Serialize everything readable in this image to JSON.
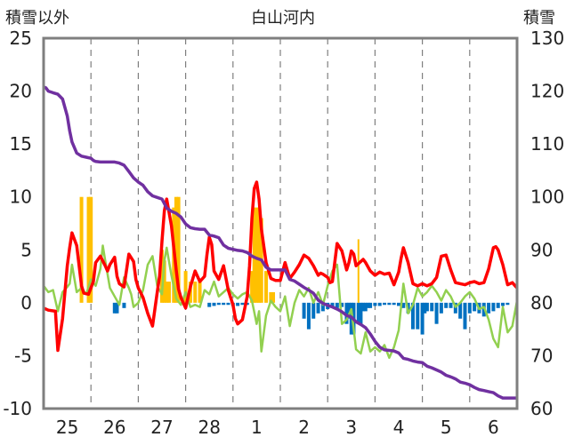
{
  "chart_data": {
    "type": "line",
    "title": "白山河内",
    "ylabel_left": "積雪以外",
    "ylabel_right": "積雪",
    "ylim_left": [
      -10,
      25
    ],
    "yticks_left": [
      "25",
      "20",
      "15",
      "10",
      "5",
      "0",
      "-5",
      "-10"
    ],
    "ylim_right": [
      60,
      130
    ],
    "yticks_right": [
      "130",
      "120",
      "110",
      "100",
      "90",
      "80",
      "70",
      "60"
    ],
    "xlim": [
      24.5,
      34.5
    ],
    "x_tick_labels": [
      "25",
      "26",
      "27",
      "28",
      "1",
      "2",
      "3",
      "4",
      "5",
      "6"
    ],
    "x_tick_positions": [
      25,
      26,
      27,
      28,
      29,
      30,
      31,
      32,
      33,
      34
    ],
    "grid": "vertical-dashed",
    "colors": {
      "temperature": "#ff0000",
      "humidity_like": "#92d050",
      "snow_depth": "#7030a0",
      "precip_pos": "#ffc000",
      "precip_neg": "#0070c0"
    },
    "series": [
      {
        "key": "red",
        "axis": "left",
        "x": [
          24.5,
          24.6,
          24.75,
          24.8,
          24.9,
          25.0,
          25.05,
          25.1,
          25.2,
          25.3,
          25.35,
          25.45,
          25.55,
          25.6,
          25.7,
          25.8,
          25.85,
          25.9,
          26.0,
          26.05,
          26.1,
          26.2,
          26.3,
          26.4,
          26.45,
          26.5,
          26.6,
          26.7,
          26.8,
          26.9,
          26.95,
          27.0,
          27.05,
          27.1,
          27.2,
          27.3,
          27.35,
          27.4,
          27.5,
          27.6,
          27.7,
          27.8,
          27.9,
          27.95,
          28.0,
          28.05,
          28.1,
          28.2,
          28.3,
          28.4,
          28.5,
          28.55,
          28.6,
          28.7,
          28.8,
          28.85,
          28.9,
          28.95,
          29.0,
          29.05,
          29.1,
          29.2,
          29.3,
          29.4,
          29.5,
          29.6,
          29.7,
          29.8,
          29.9,
          30.0,
          30.1,
          30.2,
          30.3,
          30.35,
          30.4,
          30.5,
          30.55,
          30.6,
          30.7,
          30.8,
          30.9,
          30.95,
          31.0,
          31.05,
          31.1,
          31.2,
          31.25,
          31.3,
          31.4,
          31.5,
          31.6,
          31.7,
          31.8,
          31.9,
          32.0,
          32.05,
          32.1,
          32.2,
          32.3,
          32.4,
          32.5,
          32.6,
          32.7,
          32.8,
          32.9,
          33.0,
          33.1,
          33.2,
          33.3,
          33.4,
          33.5,
          33.6,
          33.7,
          33.8,
          33.9,
          34.0,
          34.05,
          34.1,
          34.2,
          34.3,
          34.4,
          34.5
        ],
        "values": [
          -0.5,
          -0.7,
          -0.8,
          -4.5,
          -1.5,
          3.5,
          5.2,
          6.6,
          5.4,
          1.6,
          0.9,
          0.8,
          2.0,
          3.8,
          4.4,
          3.5,
          3.0,
          3.6,
          4.3,
          2.5,
          1.8,
          1.5,
          4.6,
          3.9,
          2.2,
          1.4,
          0.5,
          -1.0,
          -2.2,
          1.0,
          2.5,
          5.8,
          8.7,
          9.8,
          7.3,
          3.1,
          1.3,
          0.5,
          -0.5,
          1.5,
          3.0,
          2.0,
          2.5,
          4.5,
          6.2,
          5.5,
          3.0,
          2.2,
          3.5,
          1.2,
          -0.2,
          -1.5,
          -2.0,
          -1.6,
          0.6,
          3.5,
          8.0,
          10.8,
          11.4,
          9.8,
          7.0,
          3.8,
          2.3,
          2.1,
          2.1,
          3.8,
          2.3,
          2.9,
          3.6,
          4.5,
          4.2,
          3.5,
          2.6,
          2.8,
          2.7,
          2.4,
          1.9,
          2.0,
          5.6,
          4.9,
          3.1,
          3.8,
          4.9,
          4.6,
          3.5,
          3.9,
          4.1,
          3.8,
          3.0,
          2.6,
          2.9,
          2.7,
          2.8,
          1.7,
          2.9,
          4.2,
          5.2,
          3.8,
          1.8,
          1.6,
          1.8,
          1.6,
          1.8,
          2.4,
          4.4,
          4.5,
          3.1,
          1.9,
          1.8,
          1.7,
          1.9,
          2.0,
          1.8,
          1.9,
          3.2,
          5.2,
          5.3,
          5.0,
          3.6,
          1.7,
          1.9,
          1.4
        ]
      },
      {
        "key": "green",
        "axis": "left",
        "x": [
          24.5,
          24.6,
          24.7,
          24.8,
          24.9,
          25.0,
          25.05,
          25.1,
          25.2,
          25.3,
          25.4,
          25.5,
          25.6,
          25.7,
          25.75,
          25.8,
          25.9,
          26.0,
          26.1,
          26.2,
          26.3,
          26.35,
          26.4,
          26.5,
          26.6,
          26.7,
          26.8,
          26.9,
          27.0,
          27.05,
          27.1,
          27.2,
          27.3,
          27.4,
          27.5,
          27.6,
          27.7,
          27.8,
          27.9,
          28.0,
          28.1,
          28.2,
          28.3,
          28.4,
          28.5,
          28.6,
          28.7,
          28.8,
          28.9,
          29.0,
          29.05,
          29.1,
          29.2,
          29.3,
          29.4,
          29.5,
          29.6,
          29.7,
          29.8,
          29.9,
          30.0,
          30.1,
          30.2,
          30.3,
          30.4,
          30.5,
          30.6,
          30.7,
          30.8,
          30.9,
          31.0,
          31.1,
          31.2,
          31.3,
          31.4,
          31.5,
          31.6,
          31.7,
          31.8,
          31.9,
          32.0,
          32.1,
          32.2,
          32.3,
          32.4,
          32.5,
          32.6,
          32.7,
          32.8,
          32.9,
          33.0,
          33.1,
          33.2,
          33.3,
          33.4,
          33.5,
          33.6,
          33.7,
          33.8,
          33.9,
          34.0,
          34.1,
          34.2,
          34.3,
          34.4,
          34.5
        ],
        "values": [
          1.6,
          1.0,
          1.2,
          -0.8,
          1.0,
          1.5,
          1.8,
          3.6,
          1.0,
          1.4,
          0.8,
          2.2,
          1.6,
          3.2,
          5.4,
          4.0,
          1.4,
          0.6,
          -0.2,
          2.4,
          1.4,
          0.8,
          -0.4,
          0.0,
          1.2,
          3.6,
          4.4,
          1.6,
          0.8,
          4.0,
          5.2,
          2.6,
          0.4,
          -0.2,
          1.0,
          -0.4,
          -0.2,
          -0.4,
          1.2,
          0.8,
          2.0,
          0.6,
          1.0,
          1.4,
          0.8,
          0.4,
          0.8,
          1.0,
          0.2,
          -2.0,
          -0.8,
          -4.6,
          -1.2,
          0.2,
          -0.4,
          -0.8,
          0.6,
          -2.2,
          0.0,
          1.2,
          0.6,
          1.4,
          0.0,
          1.0,
          -0.2,
          1.6,
          3.0,
          3.6,
          -2.0,
          -1.6,
          -0.6,
          -4.4,
          -4.8,
          -2.8,
          -4.6,
          -4.2,
          -4.6,
          -4.0,
          -5.2,
          -4.2,
          -2.6,
          1.8,
          -1.0,
          -0.2,
          1.4,
          0.6,
          1.0,
          1.6,
          1.0,
          0.2,
          1.2,
          0.6,
          -0.4,
          0.0,
          0.6,
          1.0,
          0.4,
          -0.6,
          -0.4,
          -1.6,
          -3.4,
          -4.2,
          -0.4,
          -2.8,
          -2.2,
          0.2
        ]
      },
      {
        "key": "purple",
        "axis": "right",
        "x": [
          24.5,
          24.55,
          24.6,
          24.7,
          24.8,
          24.9,
          25.0,
          25.05,
          25.1,
          25.2,
          25.3,
          25.4,
          25.5,
          25.55,
          25.6,
          25.7,
          25.8,
          25.9,
          26.0,
          26.1,
          26.2,
          26.3,
          26.4,
          26.5,
          26.6,
          26.7,
          26.8,
          26.9,
          27.0,
          27.1,
          27.2,
          27.3,
          27.4,
          27.5,
          27.6,
          27.7,
          27.8,
          27.9,
          28.0,
          28.1,
          28.2,
          28.3,
          28.4,
          28.5,
          28.6,
          28.7,
          28.8,
          28.9,
          29.0,
          29.1,
          29.2,
          29.3,
          29.4,
          29.5,
          29.6,
          29.7,
          29.8,
          29.9,
          30.0,
          30.1,
          30.2,
          30.3,
          30.4,
          30.5,
          30.6,
          30.7,
          30.8,
          30.9,
          31.0,
          31.1,
          31.2,
          31.3,
          31.4,
          31.5,
          31.6,
          31.7,
          31.8,
          31.9,
          32.0,
          32.1,
          32.2,
          32.3,
          32.4,
          32.5,
          32.6,
          32.7,
          32.8,
          32.9,
          33.0,
          33.1,
          33.2,
          33.3,
          33.4,
          33.5,
          33.6,
          33.7,
          33.8,
          33.9,
          34.0,
          34.1,
          34.2,
          34.3,
          34.4,
          34.5
        ],
        "values": [
          120.8,
          120.6,
          120.0,
          119.7,
          119.4,
          118.5,
          115.3,
          112.5,
          110.4,
          108.3,
          107.7,
          107.5,
          107.3,
          106.9,
          106.7,
          106.6,
          106.6,
          106.6,
          106.6,
          106.4,
          106.0,
          104.8,
          103.6,
          102.8,
          102.2,
          101.0,
          100.2,
          99.9,
          99.6,
          97.9,
          97.3,
          96.9,
          96.2,
          94.9,
          94.2,
          94.0,
          93.9,
          93.9,
          92.8,
          92.6,
          92.3,
          90.9,
          90.3,
          90.1,
          89.9,
          89.8,
          89.5,
          88.8,
          88.4,
          88.1,
          86.7,
          86.2,
          86.2,
          86.2,
          86.2,
          84.4,
          84.1,
          83.5,
          82.9,
          82.4,
          81.8,
          80.5,
          79.9,
          79.5,
          79.2,
          78.8,
          78.3,
          77.6,
          77.3,
          76.4,
          75.9,
          75.3,
          74.1,
          72.7,
          71.6,
          71.1,
          71.0,
          70.9,
          70.5,
          69.5,
          69.3,
          69.0,
          68.8,
          68.7,
          68.0,
          67.7,
          67.3,
          66.9,
          66.3,
          66.0,
          65.6,
          65.0,
          64.8,
          64.5,
          64.0,
          63.6,
          63.4,
          63.2,
          63.0,
          62.4,
          62.0,
          62.0,
          62.0,
          62.0
        ]
      }
    ],
    "precip_bars": {
      "axis": "left",
      "x": [
        25.3,
        25.45,
        25.5,
        26.0,
        26.05,
        26.2,
        27.0,
        27.05,
        27.1,
        27.15,
        27.25,
        27.3,
        27.35,
        27.5,
        27.6,
        27.7,
        27.8,
        28.0,
        28.1,
        28.2,
        28.3,
        28.4,
        28.5,
        28.6,
        28.7,
        28.8,
        28.9,
        28.95,
        29.0,
        29.05,
        29.1,
        29.2,
        29.3,
        29.35,
        30.0,
        30.1,
        30.2,
        30.3,
        30.4,
        30.5,
        30.6,
        30.7,
        30.8,
        30.9,
        30.95,
        31.0,
        31.05,
        31.15,
        31.2,
        31.25,
        31.3,
        31.35,
        31.4,
        31.5,
        31.6,
        31.7,
        31.8,
        31.9,
        32.0,
        32.1,
        32.2,
        32.3,
        32.4,
        32.5,
        32.55,
        32.6,
        32.7,
        32.8,
        32.9,
        33.0,
        33.1,
        33.2,
        33.3,
        33.4,
        33.5,
        33.6,
        33.7,
        33.8,
        33.9,
        34.0,
        34.1,
        34.2,
        34.3
      ],
      "values": [
        10,
        10,
        10,
        -1,
        -1,
        -0.5,
        5,
        4,
        2,
        2,
        9,
        10,
        10,
        3,
        2,
        2,
        2,
        -0.4,
        -0.3,
        -0.2,
        -0.2,
        -0.2,
        -0.3,
        -0.3,
        -0.2,
        -0.2,
        3,
        9,
        9,
        9,
        8,
        3,
        1,
        1,
        -1.5,
        -2.5,
        -1.5,
        -1,
        -0.8,
        -0.6,
        -0.4,
        -0.5,
        -0.4,
        -2,
        -1.5,
        -3,
        -3,
        -2,
        -2,
        -0.8,
        -0.8,
        -0.5,
        -0.5,
        -0.3,
        -0.3,
        -0.2,
        -0.2,
        -0.2,
        -0.3,
        -0.5,
        -1,
        -2.5,
        -2.5,
        -3,
        -1,
        -0.8,
        -0.8,
        -2,
        -1,
        -0.5,
        -0.5,
        -1,
        -1.5,
        -2.5,
        -1,
        -0.8,
        -1,
        -1.3,
        -1,
        -0.8,
        -0.5,
        -0.3,
        -0.2
      ],
      "extra_thin_marks": [
        [
          31.15,
          6
        ]
      ]
    }
  }
}
